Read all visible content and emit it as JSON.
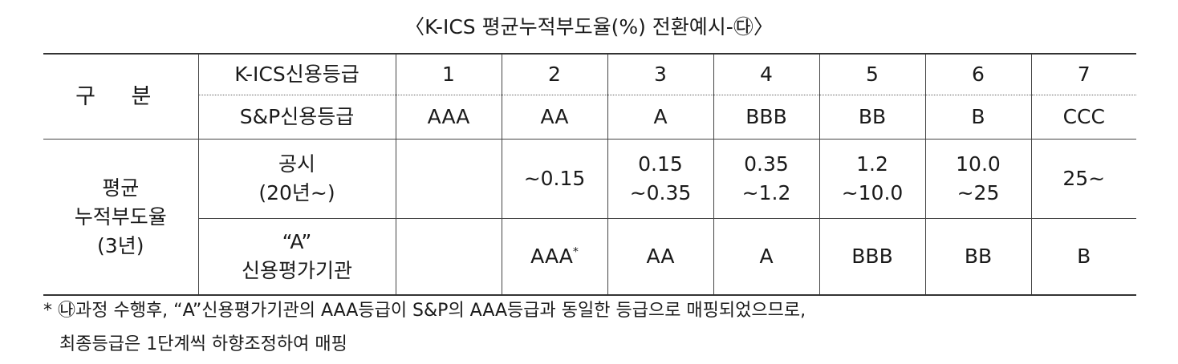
{
  "title": "〈K-ICS 평균누적부도율(%) 전환예시-㉰〉",
  "header": {
    "group_label": "구 분",
    "kics_label": "K-ICS신용등급",
    "sp_label": "S&P신용등급",
    "kics_grades": [
      "1",
      "2",
      "3",
      "4",
      "5",
      "6",
      "7"
    ],
    "sp_grades": [
      "AAA",
      "AA",
      "A",
      "BBB",
      "BB",
      "B",
      "CCC"
    ]
  },
  "body": {
    "row_group_label_line1": "평균",
    "row_group_label_line2": "누적부도율",
    "row_group_label_line3": "(3년)",
    "disclosure_label_line1": "공시",
    "disclosure_label_line2": "(20년~)",
    "disclosure_values": [
      {
        "l1": "",
        "l2": ""
      },
      {
        "l1": "~0.15",
        "l2": ""
      },
      {
        "l1": "0.15",
        "l2": "~0.35"
      },
      {
        "l1": "0.35",
        "l2": "~1.2"
      },
      {
        "l1": "1.2",
        "l2": "~10.0"
      },
      {
        "l1": "10.0",
        "l2": "~25"
      },
      {
        "l1": "25~",
        "l2": ""
      }
    ],
    "agency_label_line1": "“A”",
    "agency_label_line2": "신용평가기관",
    "agency_values": [
      "",
      "AAA",
      "AA",
      "A",
      "BBB",
      "BB",
      "B"
    ],
    "agency_footnote_mark": "*"
  },
  "note": {
    "line1": "* ㉯과정 수행후, “A”신용평가기관의 AAA등급이 S&P의 AAA등급과 동일한 등급으로 매핑되었으므로,",
    "line2": "최종등급은 1단계씩 하향조정하여 매핑"
  }
}
